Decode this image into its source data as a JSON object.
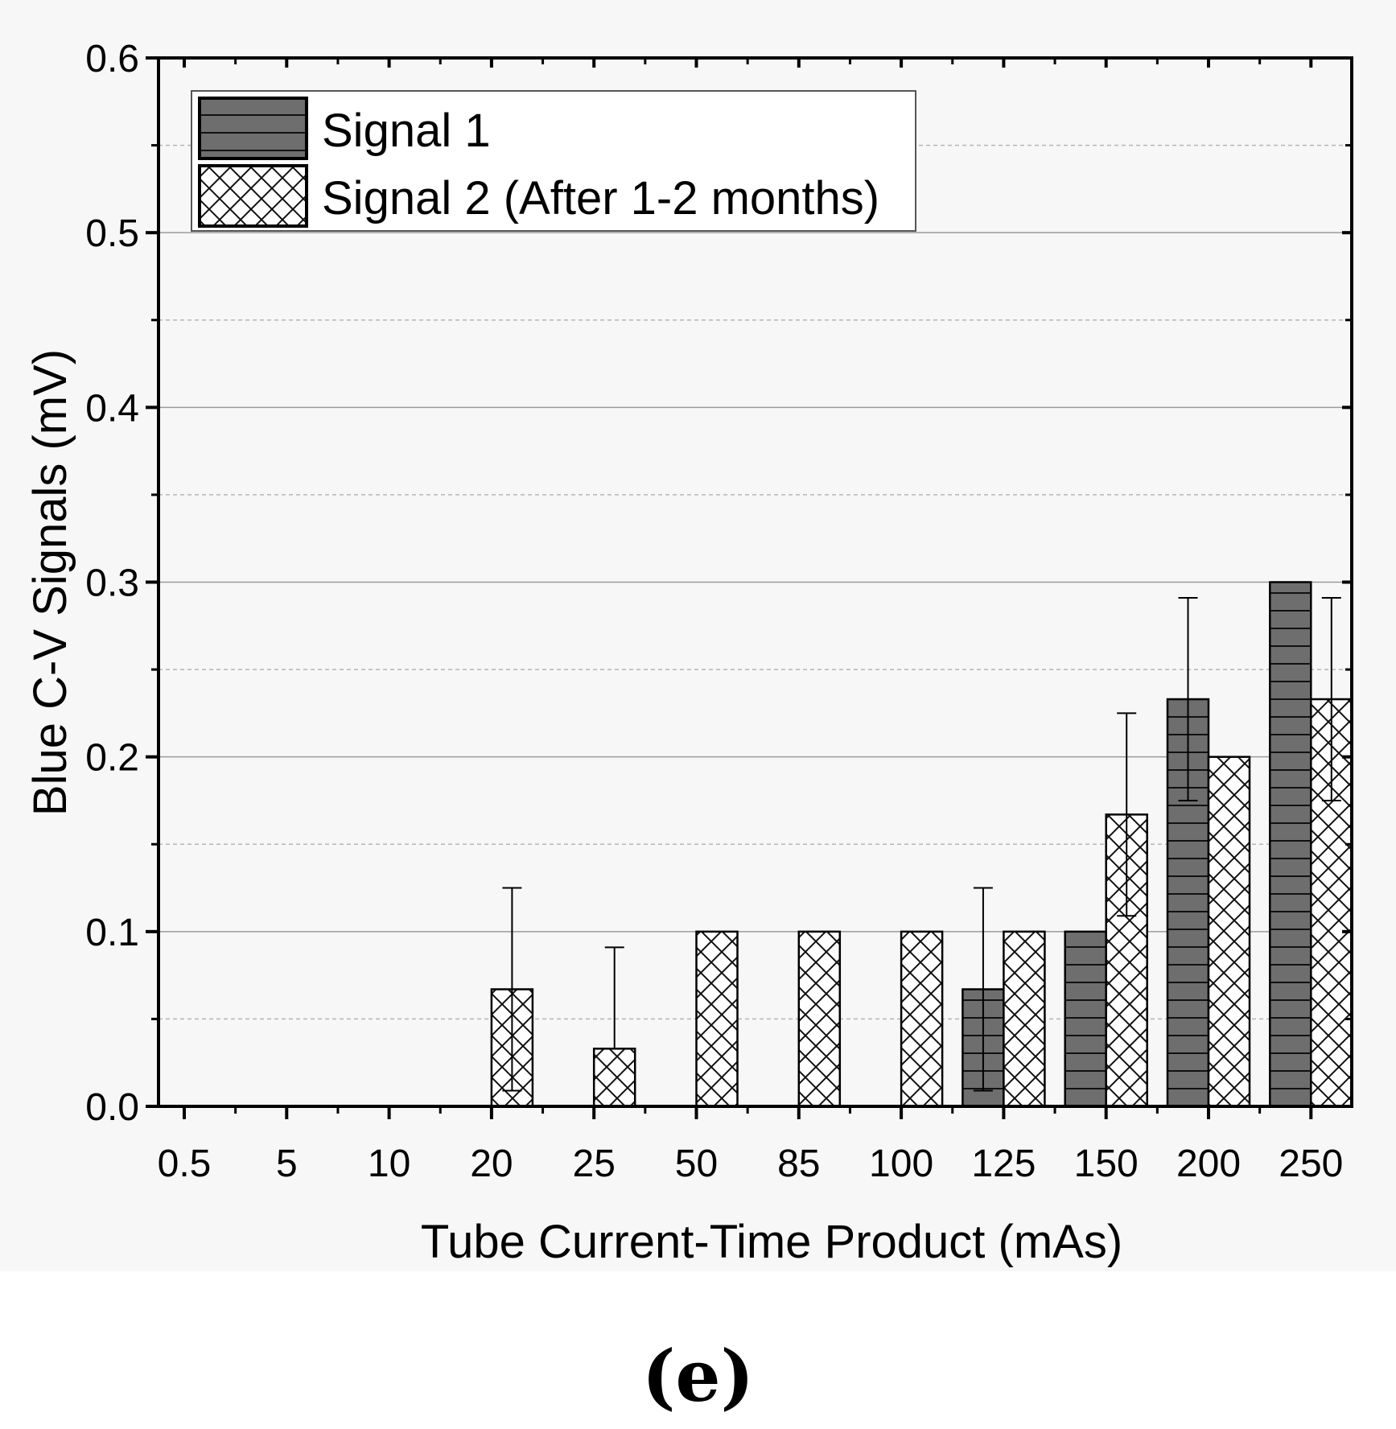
{
  "panel_label": "(e)",
  "chart_data": {
    "type": "bar",
    "title": "",
    "xlabel": "Tube Current-Time Product (mAs)",
    "ylabel": "Blue C-V Signals (mV)",
    "ylim": [
      0,
      0.6
    ],
    "yticks": [
      "0.0",
      "0.1",
      "0.2",
      "0.3",
      "0.4",
      "0.5",
      "0.6"
    ],
    "grid": true,
    "legend_position": "top-left",
    "categories": [
      "0.5",
      "5",
      "10",
      "20",
      "25",
      "50",
      "85",
      "100",
      "125",
      "150",
      "200",
      "250"
    ],
    "series": [
      {
        "name": "Signal 1",
        "pattern": "horizontal-lines",
        "fill": "#6e6e6e",
        "values": [
          0,
          0,
          0,
          0,
          0,
          0,
          0,
          0,
          0.067,
          0.1,
          0.233,
          0.3
        ],
        "error_upper": [
          null,
          null,
          null,
          null,
          null,
          null,
          null,
          null,
          0.125,
          null,
          0.291,
          null
        ],
        "error_lower": [
          null,
          null,
          null,
          null,
          null,
          null,
          null,
          null,
          0.009,
          null,
          0.175,
          null
        ]
      },
      {
        "name": "Signal 2 (After 1-2 months)",
        "pattern": "crosshatch",
        "fill": "#ffffff",
        "values": [
          0,
          0,
          0,
          0.067,
          0.033,
          0.1,
          0.1,
          0.1,
          0.1,
          0.167,
          0.2,
          0.233
        ],
        "error_upper": [
          null,
          null,
          null,
          0.125,
          0.091,
          null,
          null,
          null,
          null,
          0.225,
          null,
          0.291
        ],
        "error_lower": [
          null,
          null,
          null,
          0.009,
          null,
          null,
          null,
          null,
          null,
          0.109,
          null,
          0.175
        ]
      }
    ]
  }
}
